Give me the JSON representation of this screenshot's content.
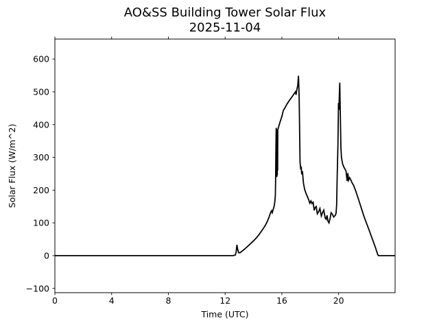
{
  "chart_data": {
    "type": "line",
    "title": "AO&SS Building Tower Solar Flux",
    "subtitle": "2025-11-04",
    "xlabel": "Time (UTC)",
    "ylabel": "Solar Flux (W/m^2)",
    "xlim": [
      0,
      23.98
    ],
    "ylim": [
      -113,
      661
    ],
    "xticks": {
      "values": [
        0,
        4,
        8,
        12,
        16,
        20
      ],
      "labels": [
        "0",
        "4",
        "8",
        "12",
        "16",
        "20"
      ]
    },
    "yticks": {
      "values": [
        -100,
        0,
        100,
        200,
        300,
        400,
        500,
        600
      ],
      "labels": [
        "−100",
        "0",
        "100",
        "200",
        "300",
        "400",
        "500",
        "600"
      ]
    },
    "grid": false,
    "legend": "none",
    "background": "#ffffff",
    "line_color": "#000000",
    "line_width": 1.8,
    "spine_color": "#000000",
    "ticks_on": {
      "bottom": true,
      "left": true,
      "top": true,
      "right": false
    },
    "series": [
      {
        "name": "Solar Flux",
        "x": [
          0,
          12.55,
          12.72,
          12.78,
          12.83,
          12.88,
          12.95,
          13.05,
          13.2,
          13.4,
          13.6,
          13.8,
          14.0,
          14.2,
          14.4,
          14.6,
          14.8,
          14.95,
          15.1,
          15.2,
          15.27,
          15.32,
          15.38,
          15.45,
          15.5,
          15.54,
          15.56,
          15.58,
          15.6,
          15.615,
          15.63,
          15.645,
          15.66,
          15.675,
          15.69,
          15.7,
          15.71,
          15.75,
          15.85,
          16.0,
          16.1,
          16.2,
          16.35,
          16.5,
          16.65,
          16.8,
          16.95,
          17.0,
          17.05,
          17.12,
          17.17,
          17.22,
          17.25,
          17.28,
          17.32,
          17.36,
          17.4,
          17.45,
          17.5,
          17.53,
          17.6,
          17.7,
          17.82,
          17.9,
          17.97,
          18.05,
          18.12,
          18.2,
          18.28,
          18.35,
          18.42,
          18.5,
          18.6,
          18.68,
          18.78,
          18.88,
          18.95,
          19.05,
          19.12,
          19.18,
          19.25,
          19.32,
          19.4,
          19.47,
          19.55,
          19.65,
          19.72,
          19.78,
          19.82,
          19.86,
          19.9,
          19.95,
          19.99,
          20.02,
          20.05,
          20.08,
          20.12,
          20.16,
          20.2,
          20.28,
          20.35,
          20.45,
          20.52,
          20.6,
          20.65,
          20.7,
          20.78,
          20.85,
          20.95,
          21.05,
          21.2,
          21.4,
          21.6,
          21.8,
          22.0,
          22.2,
          22.4,
          22.6,
          22.75,
          22.8,
          23.98
        ],
        "y": [
          0,
          0,
          2,
          12,
          33,
          20,
          9,
          9,
          14,
          21,
          29,
          37,
          45,
          54,
          65,
          77,
          90,
          102,
          118,
          131,
          137,
          131,
          140,
          150,
          163,
          185,
          237,
          330,
          390,
          245,
          386,
          240,
          300,
          245,
          330,
          260,
          383,
          390,
          405,
          425,
          443,
          450,
          462,
          472,
          481,
          490,
          500,
          491,
          505,
          520,
          549,
          480,
          380,
          285,
          268,
          272,
          248,
          258,
          230,
          219,
          203,
          190,
          178,
          169,
          160,
          167,
          159,
          163,
          138,
          147,
          150,
          128,
          135,
          144,
          121,
          133,
          139,
          115,
          111,
          123,
          105,
          100,
          114,
          131,
          127,
          118,
          121,
          124,
          130,
          155,
          245,
          335,
          466,
          445,
          490,
          528,
          430,
          330,
          300,
          280,
          272,
          264,
          258,
          228,
          252,
          230,
          238,
          232,
          222,
          215,
          198,
          172,
          145,
          118,
          95,
          72,
          48,
          24,
          4,
          0,
          0
        ]
      }
    ]
  }
}
